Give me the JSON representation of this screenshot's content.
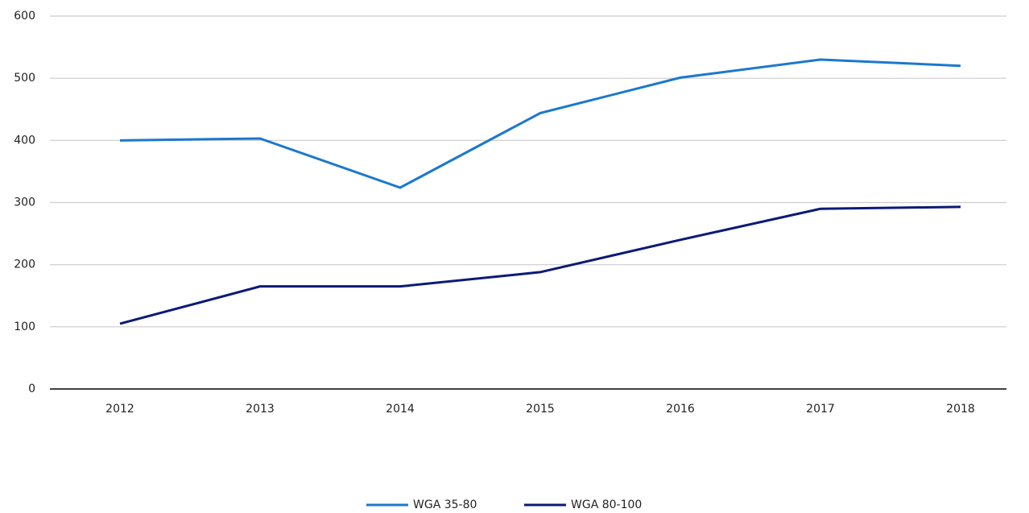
{
  "chart_data": {
    "type": "line",
    "categories": [
      "2012",
      "2013",
      "2014",
      "2015",
      "2016",
      "2017",
      "2018"
    ],
    "series": [
      {
        "name": "WGA 35-80",
        "color": "#1a78cf",
        "values": [
          400,
          403,
          324,
          444,
          501,
          530,
          520
        ]
      },
      {
        "name": "WGA 80-100",
        "color": "#0b1a78",
        "values": [
          105,
          165,
          165,
          188,
          240,
          290,
          293
        ]
      }
    ],
    "ylim": [
      0,
      600
    ],
    "yticks": [
      0,
      100,
      200,
      300,
      400,
      500,
      600
    ],
    "grid": true,
    "legend": "bottom"
  }
}
